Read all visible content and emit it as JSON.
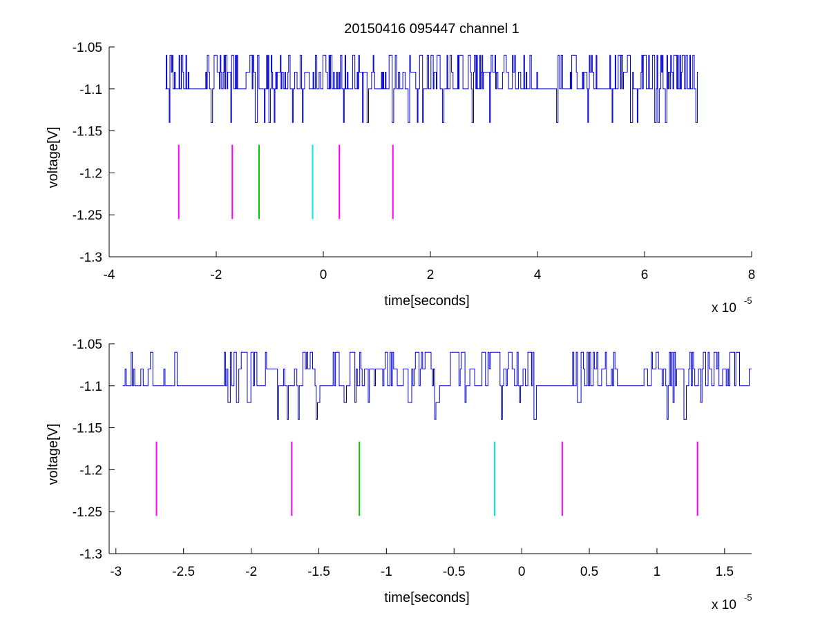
{
  "figure": {
    "title": "20150416 095447 channel 1"
  },
  "chart_data": [
    {
      "type": "line",
      "title": "20150416 095447 channel 1",
      "xlabel": "time[seconds]",
      "ylabel": "voltage[V]",
      "x_multiplier": "x 10",
      "x_multiplier_exp": "-5",
      "xlim": [
        -4,
        8
      ],
      "ylim": [
        -1.3,
        -1.05
      ],
      "xticks": [
        -4,
        -2,
        0,
        2,
        4,
        6,
        8
      ],
      "xtick_labels": [
        "-4",
        "-2",
        "0",
        "2",
        "4",
        "6",
        "8"
      ],
      "yticks": [
        -1.05,
        -1.1,
        -1.15,
        -1.2,
        -1.25,
        -1.3
      ],
      "ytick_labels": [
        "-1.05",
        "-1.1",
        "-1.15",
        "-1.2",
        "-1.25",
        "-1.3"
      ],
      "grid": false,
      "signal": {
        "color": "#0000cc",
        "x_start": -2.95,
        "x_end": 7.0,
        "seed": 7,
        "levels": [
          -1.06,
          -1.08,
          -1.1,
          -1.14
        ],
        "quiet_spans": [
          [
            -2.5,
            -2.2
          ],
          [
            -1.6,
            -1.5
          ],
          [
            4.0,
            4.3
          ],
          [
            5.1,
            5.35
          ]
        ]
      },
      "series": [
        {
          "type": "vline",
          "x": -2.7,
          "y": [
            -1.1665,
            -1.255
          ],
          "color": "#ff00ff"
        },
        {
          "type": "vline",
          "x": -1.7,
          "y": [
            -1.1665,
            -1.255
          ],
          "color": "#ff00ff"
        },
        {
          "type": "vline",
          "x": -1.2,
          "y": [
            -1.1665,
            -1.255
          ],
          "color": "#00cc00"
        },
        {
          "type": "vline",
          "x": -0.2,
          "y": [
            -1.1665,
            -1.255
          ],
          "color": "#00e5e5"
        },
        {
          "type": "vline",
          "x": 0.3,
          "y": [
            -1.1665,
            -1.255
          ],
          "color": "#ff00ff"
        },
        {
          "type": "vline",
          "x": 1.3,
          "y": [
            -1.1665,
            -1.255
          ],
          "color": "#ff00ff"
        }
      ]
    },
    {
      "type": "line",
      "title": "",
      "xlabel": "time[seconds]",
      "ylabel": "voltage[V]",
      "x_multiplier": "x 10",
      "x_multiplier_exp": "-5",
      "xlim": [
        -3.05,
        1.7
      ],
      "ylim": [
        -1.3,
        -1.05
      ],
      "xticks": [
        -3,
        -2.5,
        -2,
        -1.5,
        -1,
        -0.5,
        0,
        0.5,
        1,
        1.5
      ],
      "xtick_labels": [
        "-3",
        "-2.5",
        "-2",
        "-1.5",
        "-1",
        "-0.5",
        "0",
        "0.5",
        "1",
        "1.5"
      ],
      "yticks": [
        -1.05,
        -1.1,
        -1.15,
        -1.2,
        -1.25,
        -1.3
      ],
      "ytick_labels": [
        "-1.05",
        "-1.1",
        "-1.15",
        "-1.2",
        "-1.25",
        "-1.3"
      ],
      "grid": false,
      "signal": {
        "color": "#0000cc",
        "x_start": -2.95,
        "x_end": 1.7,
        "seed": 11,
        "levels": [
          -1.06,
          -1.08,
          -1.1,
          -1.12,
          -1.14
        ],
        "quiet_spans": [
          [
            -2.55,
            -2.2
          ],
          [
            -1.95,
            -1.9
          ],
          [
            -1.5,
            -1.4
          ],
          [
            -0.35,
            -0.3
          ],
          [
            0.1,
            0.35
          ],
          [
            0.7,
            0.9
          ]
        ]
      },
      "series": [
        {
          "type": "vline",
          "x": -2.7,
          "y": [
            -1.1665,
            -1.255
          ],
          "color": "#ff00ff"
        },
        {
          "type": "vline",
          "x": -1.7,
          "y": [
            -1.1665,
            -1.255
          ],
          "color": "#ff00ff"
        },
        {
          "type": "vline",
          "x": -1.2,
          "y": [
            -1.1665,
            -1.255
          ],
          "color": "#00cc00"
        },
        {
          "type": "vline",
          "x": -0.2,
          "y": [
            -1.1665,
            -1.255
          ],
          "color": "#00e5e5"
        },
        {
          "type": "vline",
          "x": 0.3,
          "y": [
            -1.1665,
            -1.255
          ],
          "color": "#ff00ff"
        },
        {
          "type": "vline",
          "x": 1.3,
          "y": [
            -1.1665,
            -1.255
          ],
          "color": "#ff00ff"
        }
      ]
    }
  ]
}
